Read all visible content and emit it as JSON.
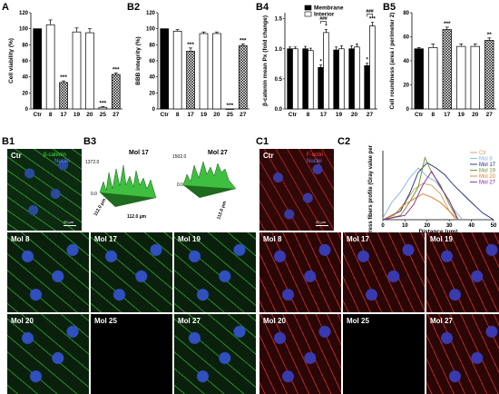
{
  "panels": {
    "A": "A",
    "B2": "B2",
    "B4": "B4",
    "B5": "B5",
    "B1": "B1",
    "B3": "B3",
    "C1": "C1",
    "C2": "C2"
  },
  "chart_data": [
    {
      "id": "A",
      "type": "bar",
      "categories": [
        "Ctr",
        "8",
        "17",
        "19",
        "20",
        "25",
        "27"
      ],
      "values": [
        100,
        105,
        33,
        96,
        95,
        2,
        43
      ],
      "errors": [
        0,
        6,
        2,
        5,
        5,
        1,
        2
      ],
      "fills": [
        "solid",
        "open",
        "hatch",
        "open",
        "open",
        "open",
        "hatch"
      ],
      "significance": [
        "",
        "",
        "***",
        "",
        "",
        "***",
        "***"
      ],
      "ylabel": "Cell viability (%)",
      "yticks": [
        0,
        20,
        40,
        60,
        80,
        100,
        120
      ],
      "ylim": [
        0,
        120
      ]
    },
    {
      "id": "B2",
      "type": "bar",
      "categories": [
        "Ctr",
        "8",
        "17",
        "19",
        "20",
        "25",
        "27"
      ],
      "values": [
        100,
        97,
        72,
        94,
        94,
        0,
        79
      ],
      "errors": [
        0,
        2,
        4,
        2,
        2,
        0,
        2
      ],
      "fills": [
        "solid",
        "open",
        "hatch",
        "open",
        "open",
        "open",
        "hatch"
      ],
      "significance": [
        "",
        "",
        "***",
        "",
        "",
        "***",
        "***"
      ],
      "ylabel": "BBB integrity (%)",
      "yticks": [
        0,
        20,
        40,
        60,
        80,
        100,
        120
      ],
      "ylim": [
        0,
        120
      ]
    },
    {
      "id": "B4",
      "type": "bar",
      "categories": [
        "Ctr",
        "8",
        "17",
        "19",
        "20",
        "27"
      ],
      "series": [
        {
          "name": "Membrane",
          "values": [
            1.0,
            1.0,
            0.69,
            0.98,
            1.0,
            0.72
          ],
          "errors": [
            0.03,
            0.04,
            0.04,
            0.05,
            0.05,
            0.04
          ]
        },
        {
          "name": "Interior",
          "values": [
            1.0,
            0.97,
            1.27,
            1.0,
            1.03,
            1.38
          ],
          "errors": [
            0.03,
            0.04,
            0.05,
            0.05,
            0.05,
            0.06
          ]
        }
      ],
      "significance_membrane": [
        "",
        "",
        "*",
        "",
        "",
        "*"
      ],
      "significance_interior": [
        "",
        "",
        "*",
        "",
        "",
        "***"
      ],
      "brackets": [
        "###",
        "###"
      ],
      "ylabel": "β-catenin mean Px (fold change)",
      "yticks": [
        0.0,
        0.5,
        1.0,
        1.5
      ],
      "ylim": [
        0,
        1.6
      ],
      "legend": "top"
    },
    {
      "id": "B5",
      "type": "bar",
      "categories": [
        "Ctr",
        "8",
        "17",
        "19",
        "20",
        "27"
      ],
      "values": [
        50,
        51,
        66,
        52,
        52,
        57
      ],
      "errors": [
        1,
        3,
        2,
        2,
        2,
        2
      ],
      "fills": [
        "solid",
        "open",
        "hatch",
        "open",
        "open",
        "hatch"
      ],
      "significance": [
        "",
        "",
        "***",
        "",
        "",
        "**"
      ],
      "ylabel": "Cell roundness (area / perimeter 2)",
      "yticks": [
        0,
        20,
        40,
        60,
        80
      ],
      "ylim": [
        0,
        80
      ]
    },
    {
      "id": "C2",
      "type": "line",
      "xlabel": "Distance (μm)",
      "ylabel": "Stress fibers profile (Gray value per cell)",
      "xticks": [
        0,
        10,
        20,
        30,
        40,
        50
      ],
      "xlim": [
        0,
        50
      ],
      "series": [
        {
          "name": "Ctr",
          "color": "#c9a060"
        },
        {
          "name": "Mol 8",
          "color": "#7fb3e0"
        },
        {
          "name": "Mol 17",
          "color": "#1a2a7a"
        },
        {
          "name": "Mol 19",
          "color": "#6b8e23"
        },
        {
          "name": "Mol 20",
          "color": "#e07a2a"
        },
        {
          "name": "Mol 27",
          "color": "#7a2a9a"
        }
      ]
    }
  ],
  "micro": {
    "b1_ctr": "Ctr",
    "b1_legend_1": "β-catenin",
    "b1_legend_2": "Nuclei",
    "b1_scale": "20 μm",
    "b3_left_title": "Mol 17",
    "b3_right_title": "Mol 27",
    "b3_left_max": "1372.0",
    "b3_right_max": "1502.0",
    "b3_zero": "0.0",
    "b3_axis": "112.0 μm",
    "b_tiles": [
      "Mol 8",
      "Mol 17",
      "Mol 19",
      "Mol 20",
      "Mol 25",
      "Mol 27"
    ],
    "c1_ctr": "Ctr",
    "c1_legend_1": "F-actin",
    "c1_legend_2": "Nuclei",
    "c_tiles": [
      "Mol 8",
      "Mol 17",
      "Mol 19",
      "Mol 20",
      "Mol 25",
      "Mol 27"
    ]
  }
}
